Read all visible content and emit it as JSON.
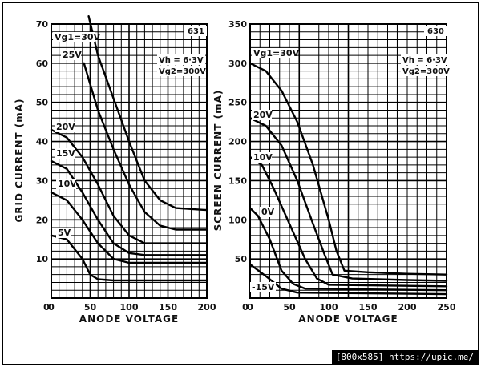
{
  "chart_data": [
    {
      "type": "line",
      "id": "631",
      "xlabel": "ANODE VOLTAGE",
      "ylabel": "GRID CURRENT (mA)",
      "xlim": [
        0,
        200
      ],
      "ylim": [
        0,
        70
      ],
      "xticks": [
        0,
        50,
        100,
        150,
        200
      ],
      "yticks": [
        10,
        20,
        30,
        40,
        50,
        60,
        70
      ],
      "grid": true,
      "annotation": [
        "Vh = 6·3V",
        "Vg2 = 300V"
      ],
      "annotation_display": [
        "Vh = 6·3V",
        "Vg2=300V"
      ],
      "series": [
        {
          "name": "Vg1 = 30V",
          "label_display": "Vg1=30V",
          "x": [
            48,
            60,
            80,
            100,
            120,
            140,
            160,
            200
          ],
          "y": [
            72,
            62,
            51,
            40,
            30,
            25,
            23,
            22.5
          ]
        },
        {
          "name": "25V",
          "label_display": "25V",
          "x": [
            42,
            60,
            80,
            100,
            120,
            140,
            160,
            200
          ],
          "y": [
            60,
            48,
            38,
            29,
            22,
            18.5,
            17.5,
            17.5
          ]
        },
        {
          "name": "20V",
          "label_display": "20V",
          "x": [
            0,
            20,
            40,
            60,
            80,
            100,
            120,
            200
          ],
          "y": [
            43,
            41,
            36,
            29,
            21,
            16,
            14,
            14
          ]
        },
        {
          "name": "15V",
          "label_display": "15V",
          "x": [
            0,
            20,
            40,
            60,
            80,
            100,
            120,
            200
          ],
          "y": [
            35,
            33,
            27,
            20,
            14,
            11.5,
            11,
            11
          ]
        },
        {
          "name": "10V",
          "label_display": "10V",
          "x": [
            0,
            20,
            40,
            60,
            80,
            100,
            200
          ],
          "y": [
            27,
            25,
            20,
            14,
            10,
            9,
            9
          ]
        },
        {
          "name": "5V",
          "label_display": "5V",
          "x": [
            0,
            20,
            40,
            50,
            60,
            80,
            200
          ],
          "y": [
            16,
            15,
            10,
            6,
            4.8,
            4.5,
            4.5
          ]
        }
      ]
    },
    {
      "type": "line",
      "id": "630",
      "xlabel": "ANODE VOLTAGE",
      "ylabel": "SCREEN CURRENT (mA)",
      "xlim": [
        0,
        250
      ],
      "ylim": [
        0,
        350
      ],
      "xticks": [
        0,
        50,
        100,
        150,
        200,
        250
      ],
      "yticks": [
        50,
        100,
        150,
        200,
        250,
        300,
        350
      ],
      "grid": true,
      "annotation": [
        "Vh = 6·3V",
        "Vg2 = 300V"
      ],
      "annotation_display": [
        "Vh = 6·3V",
        "Vg2=300V"
      ],
      "series": [
        {
          "name": "Vg1 = 30V",
          "label_display": "Vg1=30V",
          "x": [
            0,
            20,
            40,
            60,
            80,
            100,
            110,
            120,
            150,
            200,
            250
          ],
          "y": [
            300,
            290,
            265,
            225,
            170,
            100,
            60,
            35,
            33,
            31,
            30
          ]
        },
        {
          "name": "20V",
          "label_display": "20V",
          "x": [
            0,
            20,
            40,
            60,
            80,
            95,
            105,
            130,
            200,
            250
          ],
          "y": [
            230,
            220,
            195,
            150,
            95,
            55,
            30,
            25,
            23,
            22
          ]
        },
        {
          "name": "10V",
          "label_display": "10V",
          "x": [
            0,
            15,
            30,
            50,
            70,
            85,
            100,
            250
          ],
          "y": [
            180,
            170,
            140,
            95,
            50,
            25,
            17,
            15
          ]
        },
        {
          "name": "0V",
          "label_display": "0V",
          "x": [
            0,
            10,
            25,
            40,
            55,
            70,
            250
          ],
          "y": [
            115,
            105,
            75,
            35,
            18,
            12,
            10
          ]
        },
        {
          "name": "-15V",
          "label_display": "-15V",
          "x": [
            0,
            20,
            40,
            60,
            250
          ],
          "y": [
            43,
            28,
            12,
            7,
            5
          ]
        }
      ]
    }
  ],
  "watermark": "[800x585] https://upic.me/"
}
